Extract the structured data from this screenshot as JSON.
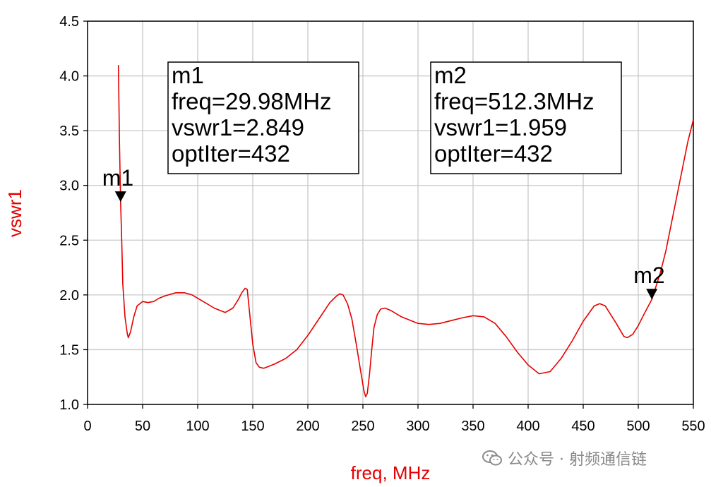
{
  "chart_data": {
    "type": "line",
    "xlabel": "freq, MHz",
    "ylabel": "vswr1",
    "xlim": [
      0,
      550
    ],
    "ylim": [
      1.0,
      4.5
    ],
    "xticks": [
      "0",
      "50",
      "100",
      "150",
      "200",
      "250",
      "300",
      "350",
      "400",
      "450",
      "500",
      "550"
    ],
    "yticks": [
      "1.0",
      "1.5",
      "2.0",
      "2.5",
      "3.0",
      "3.5",
      "4.0",
      "4.5"
    ],
    "grid": true,
    "line_color": "#e60000",
    "series": [
      {
        "x": [
          28,
          29,
          30,
          31,
          32,
          34,
          36,
          37,
          39,
          42,
          45,
          50,
          55,
          60,
          65,
          70,
          80,
          88,
          95,
          105,
          115,
          125,
          132,
          137,
          140,
          143,
          145,
          147,
          150,
          153,
          156,
          160,
          165,
          170,
          180,
          190,
          200,
          210,
          220,
          226,
          229,
          232,
          236,
          240,
          244,
          248,
          251,
          252.5,
          254,
          256,
          258,
          260,
          263,
          266,
          270,
          275,
          285,
          300,
          310,
          320,
          340,
          350,
          360,
          370,
          380,
          390,
          400,
          410,
          420,
          430,
          440,
          450,
          460,
          465,
          470,
          480,
          487,
          490,
          495,
          500,
          505,
          512.3,
          520,
          525,
          530,
          535,
          540,
          545,
          550
        ],
        "y": [
          4.1,
          3.4,
          2.849,
          2.5,
          2.1,
          1.8,
          1.65,
          1.61,
          1.66,
          1.8,
          1.9,
          1.94,
          1.93,
          1.94,
          1.97,
          1.99,
          2.02,
          2.02,
          2.0,
          1.94,
          1.88,
          1.84,
          1.88,
          1.96,
          2.02,
          2.06,
          2.05,
          1.85,
          1.55,
          1.38,
          1.34,
          1.33,
          1.35,
          1.37,
          1.42,
          1.5,
          1.63,
          1.78,
          1.93,
          1.99,
          2.01,
          2.0,
          1.92,
          1.78,
          1.55,
          1.3,
          1.12,
          1.07,
          1.1,
          1.28,
          1.5,
          1.7,
          1.82,
          1.87,
          1.88,
          1.86,
          1.8,
          1.74,
          1.73,
          1.74,
          1.79,
          1.81,
          1.8,
          1.74,
          1.62,
          1.48,
          1.36,
          1.28,
          1.3,
          1.42,
          1.58,
          1.76,
          1.9,
          1.92,
          1.9,
          1.74,
          1.62,
          1.61,
          1.64,
          1.72,
          1.82,
          1.959,
          2.2,
          2.4,
          2.65,
          2.9,
          3.15,
          3.4,
          3.6
        ]
      }
    ],
    "markers": [
      {
        "label": "m1",
        "x": 29.98,
        "y": 2.849,
        "box_lines": [
          "m1",
          "freq=29.98MHz",
          "vswr1=2.849",
          "optIter=432"
        ]
      },
      {
        "label": "m2",
        "x": 512.3,
        "y": 1.959,
        "box_lines": [
          "m2",
          "freq=512.3MHz",
          "vswr1=1.959",
          "optIter=432"
        ]
      }
    ]
  },
  "watermark": {
    "text": "公众号 · 射频通信链",
    "icon": "wechat-icon"
  }
}
